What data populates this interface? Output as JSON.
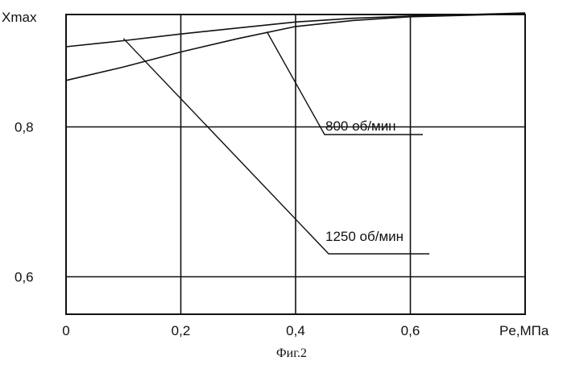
{
  "chart_data": {
    "type": "line",
    "title": "",
    "ylabel": "Xmax",
    "xlabel": "Pe,МПа",
    "caption": "Фиг.2",
    "xlim": [
      0,
      0.8
    ],
    "ylim": [
      0.55,
      0.95
    ],
    "x_ticks": [
      {
        "value": 0,
        "label": "0"
      },
      {
        "value": 0.2,
        "label": "0,2"
      },
      {
        "value": 0.4,
        "label": "0,4"
      },
      {
        "value": 0.6,
        "label": "0,6"
      }
    ],
    "y_ticks": [
      {
        "value": 0.8,
        "label": "0,8"
      },
      {
        "value": 0.6,
        "label": "0,6"
      }
    ],
    "grid": true,
    "series": [
      {
        "name": "800 об/мин",
        "x": [
          0,
          0.1,
          0.2,
          0.3,
          0.4,
          0.5,
          0.6,
          0.7,
          0.8
        ],
        "y": [
          0.907,
          0.915,
          0.924,
          0.932,
          0.94,
          0.945,
          0.948,
          0.95,
          0.952
        ]
      },
      {
        "name": "1250 об/мин",
        "x": [
          0,
          0.1,
          0.2,
          0.3,
          0.4,
          0.5,
          0.6,
          0.7,
          0.8
        ],
        "y": [
          0.862,
          0.88,
          0.9,
          0.918,
          0.934,
          0.942,
          0.947,
          0.949,
          0.951
        ]
      }
    ],
    "annotations": [
      {
        "text": "800 об/мин",
        "leader_from": [
          0.35,
          0.927
        ]
      },
      {
        "text": "1250 об/мин",
        "leader_from": [
          0.1,
          0.918
        ]
      }
    ]
  }
}
